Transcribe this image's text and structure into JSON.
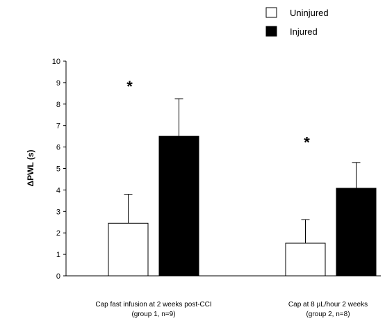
{
  "chart_data": {
    "type": "bar",
    "title": "",
    "xlabel": "",
    "ylabel": "ΔPWL (s)",
    "ylim": [
      0,
      10
    ],
    "yticks": [
      "0",
      "1",
      "2",
      "3",
      "4",
      "5",
      "6",
      "7",
      "8",
      "9",
      "10"
    ],
    "grid": false,
    "legend_position": "top-right",
    "categories": [
      {
        "line1": "Cap fast infusion at 2 weeks post-CCI",
        "line2": "(group 1, n=9)"
      },
      {
        "line1": "Cap at 8 µL/hour 2 weeks",
        "line2": "(group 2, n=8)"
      }
    ],
    "series": [
      {
        "name": "Uninjured",
        "color": "#ffffff",
        "values": [
          2.45,
          1.52
        ],
        "errors": [
          1.35,
          1.1
        ]
      },
      {
        "name": "Injured",
        "color": "#000000",
        "values": [
          6.5,
          4.08
        ],
        "errors": [
          1.75,
          1.2
        ]
      }
    ],
    "annotations": [
      {
        "text": "*",
        "category_index": 0,
        "y": 8.9
      },
      {
        "text": "*",
        "category_index": 1,
        "y": 6.3
      }
    ]
  }
}
